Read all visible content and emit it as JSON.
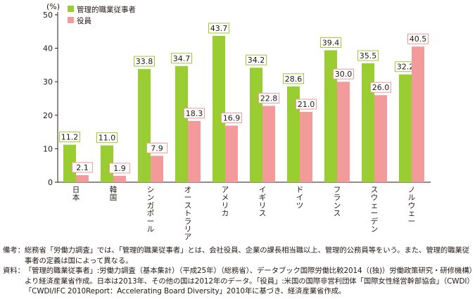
{
  "chart_data": {
    "type": "bar",
    "unit_label": "(%)",
    "ylim": [
      0,
      50
    ],
    "yticks": [
      0,
      10,
      20,
      30,
      40,
      50
    ],
    "categories": [
      "日本",
      "韓国",
      "シンガポール",
      "オーストラリア",
      "アメリカ",
      "イギリス",
      "ドイツ",
      "フランス",
      "スウェーデン",
      "ノルウェー"
    ],
    "series": [
      {
        "name": "管理的職業従事者",
        "color": "#9acd32",
        "values": [
          11.2,
          11.0,
          33.8,
          34.7,
          43.7,
          34.2,
          28.6,
          39.4,
          35.5,
          32.2
        ]
      },
      {
        "name": "役員",
        "color": "#f39a9a",
        "values": [
          2.1,
          1.9,
          7.9,
          18.3,
          16.9,
          22.8,
          21.0,
          30.0,
          26.0,
          40.5
        ]
      }
    ],
    "value_labels": [
      [
        "11.2",
        "11.0",
        "33.8",
        "34.7",
        "43.7",
        "34.2",
        "28.6",
        "39.4",
        "35.5",
        "32.2"
      ],
      [
        "2.1",
        "1.9",
        "7.9",
        "18.3",
        "16.9",
        "22.8",
        "21.0",
        "30.0",
        "26.0",
        "40.5"
      ]
    ],
    "legend_position": "top-left",
    "grid": false
  },
  "notes": {
    "biko_head": "備考：",
    "biko_text": "総務省「労働力調査」では、「管理的職業従事者」とは、会社役員、企業の課長相当職以上、管理的公務員等をいう。また、管理的職業従事者の定義は国によって異なる。",
    "shiryo_head": "資料：",
    "shiryo_text": "「管理的職業従事者」:労働力調査（基本集計）（平成25年）（総務省）、データブック国際労働比較2014（(独)）労働政策研究・研修機構）より経済産業省作成。日本は2013年、その他の国は2012年のデータ。「役員」:米国の国際非営利団体「国際女性経営幹部協会」（CWDI）「CWDI/IFC 2010Report：Accelerating Board Diversity」2010年に基づき、経済産業省作成。"
  }
}
